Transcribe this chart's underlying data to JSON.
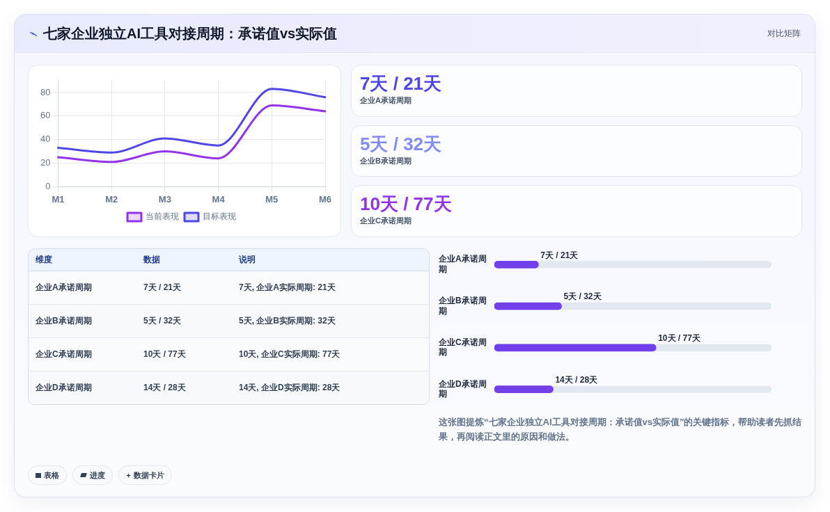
{
  "chart_data": [
    {
      "type": "other",
      "title": "七家企业独立AI工具对接周期：承诺值vs实际值",
      "annotations": [
        "对比矩阵"
      ]
    },
    {
      "type": "line",
      "categories": [
        "M1",
        "M2",
        "M3",
        "M4",
        "M5",
        "M6"
      ],
      "series": [
        {
          "name": "当前表现",
          "color": "#9333ea",
          "values": [
            25,
            21,
            30,
            24,
            69,
            64
          ]
        },
        {
          "name": "目标表现",
          "color": "#4f46e5",
          "values": [
            33,
            29,
            41,
            35,
            83,
            76
          ]
        }
      ],
      "ylim": [
        0,
        90
      ],
      "yticks": [
        0,
        20,
        40,
        60,
        80
      ],
      "grid": true,
      "legend": "bottom"
    },
    {
      "type": "other",
      "annotations": [
        "7天 / 21天",
        "企业A承诺周期",
        "5天 / 32天",
        "企业B承诺周期",
        "10天 / 77天",
        "企业C承诺周期"
      ],
      "colors": [
        "#4f46e5",
        "#818cf8",
        "#9333ea"
      ]
    },
    {
      "type": "other",
      "categories": [
        "维度",
        "数据",
        "说明"
      ],
      "annotations": [
        "企业A承诺周期",
        "7天 / 21天",
        "7天, 企业A实际周期: 21天",
        "企业B承诺周期",
        "5天 / 32天",
        "5天, 企业B实际周期: 32天",
        "企业C承诺周期",
        "10天 / 77天",
        "10天, 企业C实际周期: 77天",
        "企业D承诺周期",
        "14天 / 28天",
        "14天, 企业D实际周期: 28天"
      ]
    },
    {
      "type": "bar",
      "orientation": "horizontal",
      "categories": [
        "企业A承诺周期",
        "企业B承诺周期",
        "企业C承诺周期",
        "企业D承诺周期"
      ],
      "values": [
        21,
        32,
        77,
        28
      ],
      "color": "#7140e8",
      "xlim": [
        0,
        132
      ],
      "value_labels": [
        "7天 / 21天",
        "5天 / 32天",
        "10天 / 77天",
        "14天 / 28天"
      ],
      "tick_labels": "y",
      "annotations": [
        "这张图提炼“七家企业独立AI工具对接周期：承诺值vs实际值”的关键指标，帮助读者先抓结果，再阅读正文里的原因和做法。"
      ]
    },
    {
      "type": "other",
      "annotations": [
        "表格",
        "进度",
        "数据卡片"
      ]
    }
  ]
}
